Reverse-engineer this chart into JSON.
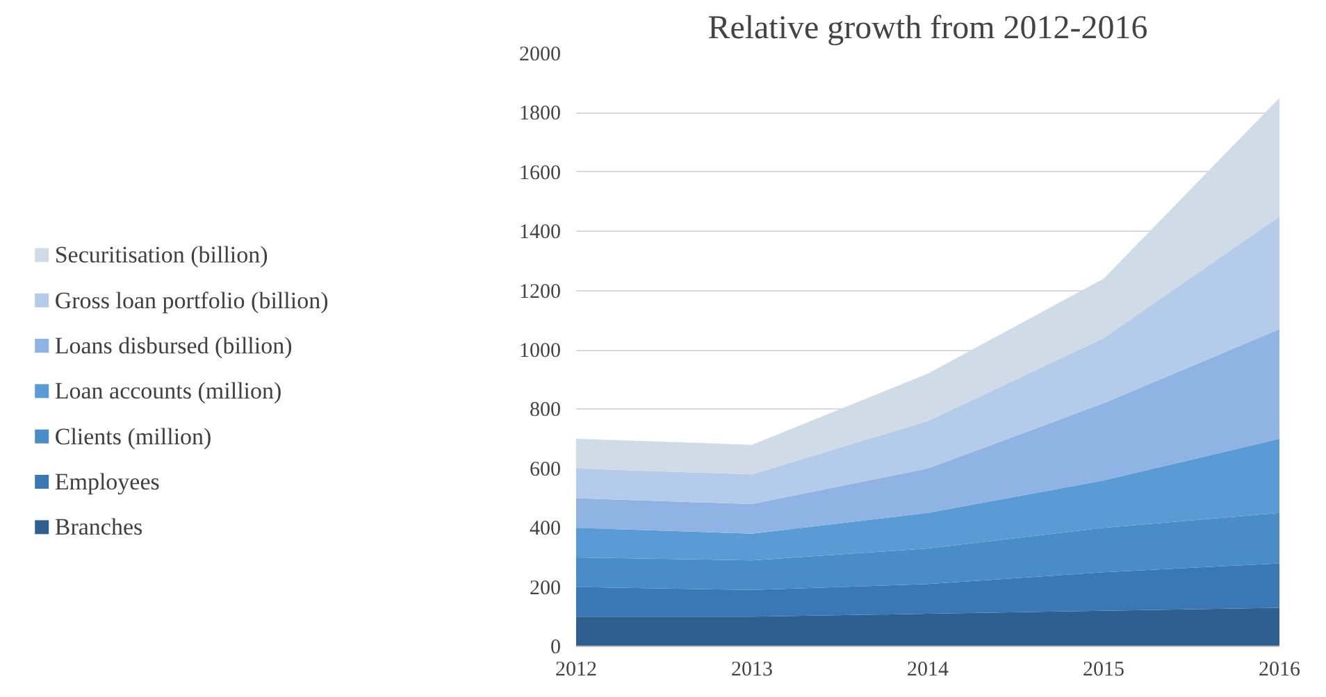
{
  "chart_data": {
    "type": "area",
    "title": "Relative growth from 2012-2016",
    "stacked": true,
    "x": [
      2012,
      2013,
      2014,
      2015,
      2016
    ],
    "xlim": [
      2012,
      2016
    ],
    "xticks": [
      2012,
      2013,
      2014,
      2015,
      2016
    ],
    "ylim": [
      0,
      2000
    ],
    "yticks": [
      0,
      200,
      400,
      600,
      800,
      1000,
      1200,
      1400,
      1600,
      1800,
      2000
    ],
    "grid": "y",
    "legend": "left",
    "series": [
      {
        "name": "Branches",
        "color": "#2f5f8f",
        "values": [
          100,
          100,
          110,
          120,
          130
        ]
      },
      {
        "name": "Employees",
        "color": "#3a78b5",
        "values": [
          100,
          90,
          100,
          130,
          150
        ]
      },
      {
        "name": "Clients (million)",
        "color": "#4a8cc8",
        "values": [
          100,
          100,
          120,
          150,
          170
        ]
      },
      {
        "name": "Loan accounts (million)",
        "color": "#5b9bd5",
        "values": [
          100,
          90,
          120,
          160,
          250
        ]
      },
      {
        "name": "Loans disbursed (billion)",
        "color": "#8fb4e3",
        "values": [
          100,
          100,
          150,
          260,
          370
        ]
      },
      {
        "name": "Gross loan portfolio (billion)",
        "color": "#b4cbea",
        "values": [
          100,
          100,
          160,
          220,
          380
        ]
      },
      {
        "name": "Securitisation (billion)",
        "color": "#d0dbe8",
        "values": [
          100,
          100,
          160,
          200,
          400
        ]
      }
    ]
  }
}
